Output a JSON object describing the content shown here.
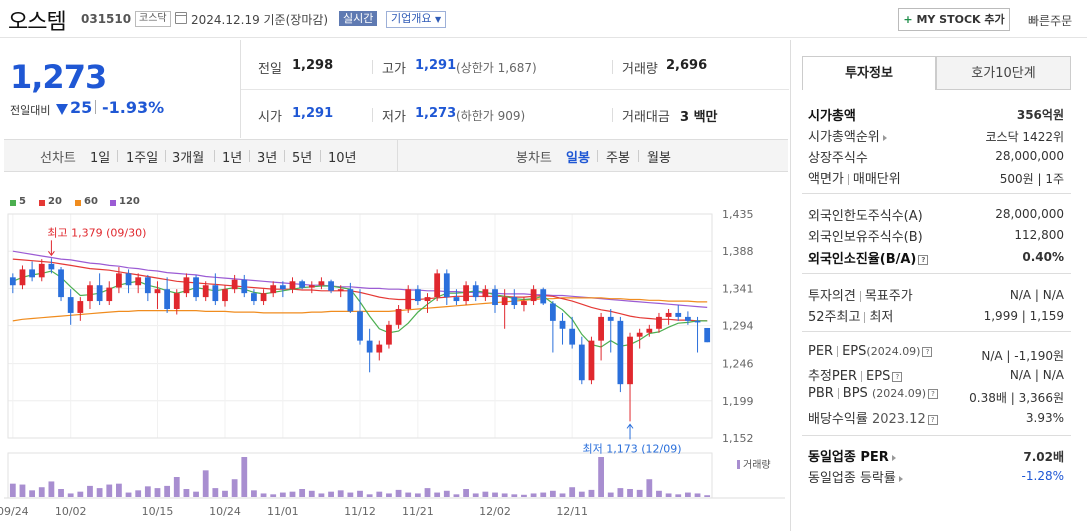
{
  "header": {
    "name": "오스템",
    "code": "031510",
    "market": "코스닥",
    "date": "2024.12.19 기준(장마감)",
    "realtime": "실시간",
    "corp_info": "기업개요",
    "mystock": "MY STOCK 추가",
    "quick_order": "빠른주문"
  },
  "price": {
    "current": "1,273",
    "change_label": "전일대비",
    "change": "25",
    "change_pct": "-1.93%"
  },
  "summary": {
    "prev_label": "전일",
    "prev": "1,298",
    "high_label": "고가",
    "high": "1,291",
    "upper_limit": "(상한가 1,687)",
    "volume_label": "거래량",
    "volume": "2,696",
    "open_label": "시가",
    "open": "1,291",
    "low_label": "저가",
    "low": "1,273",
    "lower_limit": "(하한가 909)",
    "amount_label": "거래대금",
    "amount": "3 백만"
  },
  "periods": {
    "line_label": "선차트",
    "line": [
      "1일",
      "1주일",
      "3개월",
      "1년",
      "3년",
      "5년",
      "10년"
    ],
    "candle_label": "봉차트",
    "candle": [
      "일봉",
      "주봉",
      "월봉"
    ]
  },
  "chart_data": {
    "type": "candlestick",
    "legend": [
      {
        "name": "5",
        "color": "#4caf50"
      },
      {
        "name": "20",
        "color": "#e53935"
      },
      {
        "name": "60",
        "color": "#f08c1e"
      },
      {
        "name": "120",
        "color": "#9b5bd4"
      }
    ],
    "yticks": [
      1435,
      1388,
      1341,
      1294,
      1246,
      1199,
      1152
    ],
    "ylim": [
      1152,
      1435
    ],
    "xticks": [
      "09/24",
      "10/02",
      "10/15",
      "10/24",
      "11/01",
      "11/12",
      "11/21",
      "12/02",
      "12/11"
    ],
    "high_note": "최고 1,379 (09/30)",
    "low_note": "최저 1,173 (12/09)",
    "volume_label": "거래량",
    "candles": [
      [
        1355,
        1360,
        1335,
        1345
      ],
      [
        1345,
        1370,
        1340,
        1365
      ],
      [
        1365,
        1375,
        1350,
        1355
      ],
      [
        1355,
        1378,
        1350,
        1372
      ],
      [
        1372,
        1379,
        1360,
        1365
      ],
      [
        1365,
        1368,
        1325,
        1330
      ],
      [
        1330,
        1340,
        1295,
        1310
      ],
      [
        1310,
        1330,
        1300,
        1325
      ],
      [
        1325,
        1350,
        1315,
        1345
      ],
      [
        1345,
        1360,
        1320,
        1325
      ],
      [
        1325,
        1350,
        1320,
        1342
      ],
      [
        1342,
        1368,
        1335,
        1360
      ],
      [
        1360,
        1365,
        1335,
        1345
      ],
      [
        1345,
        1360,
        1335,
        1355
      ],
      [
        1355,
        1358,
        1325,
        1335
      ],
      [
        1335,
        1350,
        1315,
        1340
      ],
      [
        1340,
        1355,
        1310,
        1315
      ],
      [
        1315,
        1340,
        1308,
        1335
      ],
      [
        1335,
        1360,
        1330,
        1355
      ],
      [
        1355,
        1358,
        1325,
        1330
      ],
      [
        1330,
        1350,
        1325,
        1345
      ],
      [
        1345,
        1360,
        1320,
        1325
      ],
      [
        1325,
        1345,
        1318,
        1340
      ],
      [
        1340,
        1358,
        1335,
        1352
      ],
      [
        1352,
        1358,
        1330,
        1335
      ],
      [
        1335,
        1340,
        1320,
        1325
      ],
      [
        1325,
        1340,
        1320,
        1335
      ],
      [
        1335,
        1350,
        1330,
        1345
      ],
      [
        1345,
        1350,
        1330,
        1340
      ],
      [
        1340,
        1355,
        1335,
        1350
      ],
      [
        1350,
        1352,
        1340,
        1342
      ],
      [
        1342,
        1350,
        1335,
        1345
      ],
      [
        1345,
        1355,
        1340,
        1350
      ],
      [
        1350,
        1352,
        1335,
        1338
      ],
      [
        1338,
        1345,
        1330,
        1340
      ],
      [
        1340,
        1348,
        1310,
        1312
      ],
      [
        1312,
        1340,
        1270,
        1275
      ],
      [
        1275,
        1290,
        1235,
        1260
      ],
      [
        1260,
        1275,
        1250,
        1270
      ],
      [
        1270,
        1300,
        1265,
        1295
      ],
      [
        1295,
        1320,
        1290,
        1315
      ],
      [
        1315,
        1345,
        1310,
        1340
      ],
      [
        1340,
        1345,
        1320,
        1325
      ],
      [
        1325,
        1335,
        1310,
        1330
      ],
      [
        1330,
        1365,
        1325,
        1360
      ],
      [
        1360,
        1365,
        1320,
        1330
      ],
      [
        1330,
        1340,
        1320,
        1325
      ],
      [
        1325,
        1350,
        1320,
        1345
      ],
      [
        1345,
        1350,
        1325,
        1330
      ],
      [
        1330,
        1345,
        1325,
        1340
      ],
      [
        1340,
        1345,
        1310,
        1320
      ],
      [
        1320,
        1340,
        1290,
        1330
      ],
      [
        1330,
        1340,
        1315,
        1320
      ],
      [
        1320,
        1330,
        1312,
        1325
      ],
      [
        1325,
        1345,
        1320,
        1340
      ],
      [
        1340,
        1342,
        1320,
        1322
      ],
      [
        1322,
        1325,
        1260,
        1300
      ],
      [
        1300,
        1310,
        1270,
        1290
      ],
      [
        1290,
        1305,
        1265,
        1270
      ],
      [
        1270,
        1280,
        1220,
        1225
      ],
      [
        1225,
        1280,
        1220,
        1275
      ],
      [
        1275,
        1310,
        1250,
        1305
      ],
      [
        1305,
        1315,
        1260,
        1300
      ],
      [
        1300,
        1305,
        1210,
        1220
      ],
      [
        1220,
        1285,
        1173,
        1280
      ],
      [
        1280,
        1290,
        1265,
        1285
      ],
      [
        1285,
        1295,
        1280,
        1290
      ],
      [
        1290,
        1310,
        1285,
        1305
      ],
      [
        1305,
        1315,
        1295,
        1310
      ],
      [
        1310,
        1320,
        1300,
        1305
      ],
      [
        1305,
        1312,
        1295,
        1300
      ],
      [
        1300,
        1305,
        1260,
        1298
      ],
      [
        1291,
        1291,
        1273,
        1273
      ]
    ],
    "volumes": [
      30,
      28,
      15,
      22,
      35,
      18,
      8,
      12,
      25,
      20,
      28,
      30,
      10,
      15,
      24,
      20,
      25,
      45,
      18,
      12,
      60,
      20,
      14,
      40,
      90,
      15,
      8,
      6,
      10,
      12,
      18,
      14,
      8,
      12,
      15,
      10,
      14,
      6,
      12,
      8,
      16,
      10,
      8,
      20,
      10,
      14,
      6,
      18,
      8,
      12,
      10,
      8,
      6,
      5,
      8,
      10,
      14,
      8,
      22,
      12,
      16,
      90,
      10,
      20,
      18,
      16,
      40,
      14,
      8,
      6,
      10,
      8,
      4
    ],
    "ma": {
      "5": [
        1350,
        1355,
        1358,
        1360,
        1363,
        1355,
        1343,
        1332,
        1333,
        1335,
        1340,
        1345,
        1348,
        1350,
        1345,
        1342,
        1338,
        1335,
        1338,
        1342,
        1340,
        1338,
        1340,
        1342,
        1340,
        1336,
        1334,
        1336,
        1338,
        1340,
        1342,
        1343,
        1344,
        1344,
        1342,
        1340,
        1324,
        1306,
        1290,
        1285,
        1287,
        1297,
        1311,
        1321,
        1330,
        1335,
        1335,
        1336,
        1338,
        1336,
        1333,
        1331,
        1328,
        1327,
        1328,
        1331,
        1322,
        1314,
        1302,
        1283,
        1270,
        1267,
        1275,
        1268,
        1270,
        1276,
        1284,
        1286,
        1292,
        1297,
        1298,
        1300,
        1300
      ],
      "20": [
        1378,
        1377,
        1376,
        1375,
        1374,
        1372,
        1370,
        1368,
        1366,
        1365,
        1364,
        1362,
        1360,
        1358,
        1356,
        1354,
        1352,
        1350,
        1349,
        1348,
        1347,
        1346,
        1345,
        1344,
        1343,
        1342,
        1341,
        1340,
        1340,
        1340,
        1339,
        1339,
        1338,
        1338,
        1338,
        1338,
        1336,
        1333,
        1330,
        1328,
        1327,
        1327,
        1327,
        1328,
        1329,
        1330,
        1331,
        1331,
        1331,
        1331,
        1331,
        1331,
        1330,
        1330,
        1331,
        1332,
        1331,
        1328,
        1325,
        1321,
        1317,
        1314,
        1312,
        1309,
        1306,
        1304,
        1303,
        1302,
        1302,
        1301,
        1301,
        1300,
        1300
      ],
      "60": [
        1300,
        1302,
        1303,
        1304,
        1305,
        1306,
        1307,
        1308,
        1309,
        1310,
        1311,
        1312,
        1312,
        1313,
        1313,
        1313,
        1313,
        1313,
        1313,
        1313,
        1312,
        1312,
        1312,
        1311,
        1311,
        1311,
        1310,
        1310,
        1310,
        1310,
        1310,
        1311,
        1311,
        1312,
        1312,
        1312,
        1312,
        1312,
        1312,
        1312,
        1313,
        1314,
        1315,
        1316,
        1317,
        1318,
        1319,
        1320,
        1321,
        1322,
        1323,
        1324,
        1325,
        1326,
        1327,
        1328,
        1328,
        1329,
        1329,
        1329,
        1329,
        1329,
        1328,
        1328,
        1327,
        1327,
        1326,
        1326,
        1325,
        1325,
        1325,
        1324,
        1324
      ],
      "120": [
        1388,
        1386,
        1384,
        1382,
        1380,
        1378,
        1377,
        1375,
        1373,
        1372,
        1370,
        1369,
        1367,
        1366,
        1364,
        1363,
        1361,
        1360,
        1359,
        1358,
        1356,
        1355,
        1354,
        1353,
        1352,
        1351,
        1350,
        1349,
        1348,
        1347,
        1346,
        1345,
        1345,
        1344,
        1343,
        1343,
        1342,
        1341,
        1341,
        1340,
        1340,
        1339,
        1339,
        1338,
        1338,
        1337,
        1337,
        1336,
        1336,
        1335,
        1335,
        1334,
        1334,
        1334,
        1333,
        1333,
        1332,
        1332,
        1331,
        1330,
        1329,
        1328,
        1327,
        1326,
        1325,
        1324,
        1323,
        1322,
        1321,
        1320,
        1319,
        1318,
        1317
      ]
    }
  },
  "tabs": {
    "invest": "투자정보",
    "hoga": "호가10단계"
  },
  "invest": {
    "mcap_label": "시가총액",
    "mcap": "356억원",
    "mcap_rank_label": "시가총액순위",
    "mcap_rank": "코스닥 1422위",
    "shares_label": "상장주식수",
    "shares": "28,000,000",
    "par_label": "액면가",
    "unit_label": "매매단위",
    "par_unit": "500원 | 1주",
    "foreign_limit_label": "외국인한도주식수(A)",
    "foreign_limit": "28,000,000",
    "foreign_hold_label": "외국인보유주식수(B)",
    "foreign_hold": "112,800",
    "foreign_ratio_label": "외국인소진율(B/A)",
    "foreign_ratio": "0.40%",
    "opinion_label": "투자의견",
    "target_label": "목표주가",
    "opinion_target": "N/A | N/A",
    "w52_label": "52주최고",
    "w52_low_label": "최저",
    "w52": "1,999 | 1,159",
    "per_label": "PER",
    "eps_label": "EPS",
    "per_year": "(2024.09)",
    "per_eps": "N/A | -1,190원",
    "est_per_label": "추정PER",
    "est_eps_label": "EPS",
    "est_per_eps": "N/A | N/A",
    "pbr_label": "PBR",
    "bps_label": "BPS",
    "pbr_year": "(2024.09)",
    "pbr_bps": "0.38배 | 3,366원",
    "div_label": "배당수익률",
    "div_year": "2023.12",
    "div": "3.93%",
    "ind_per_label": "동일업종 PER",
    "ind_per": "7.02배",
    "ind_rate_label": "동일업종 등락률",
    "ind_rate": "-1.28%"
  }
}
